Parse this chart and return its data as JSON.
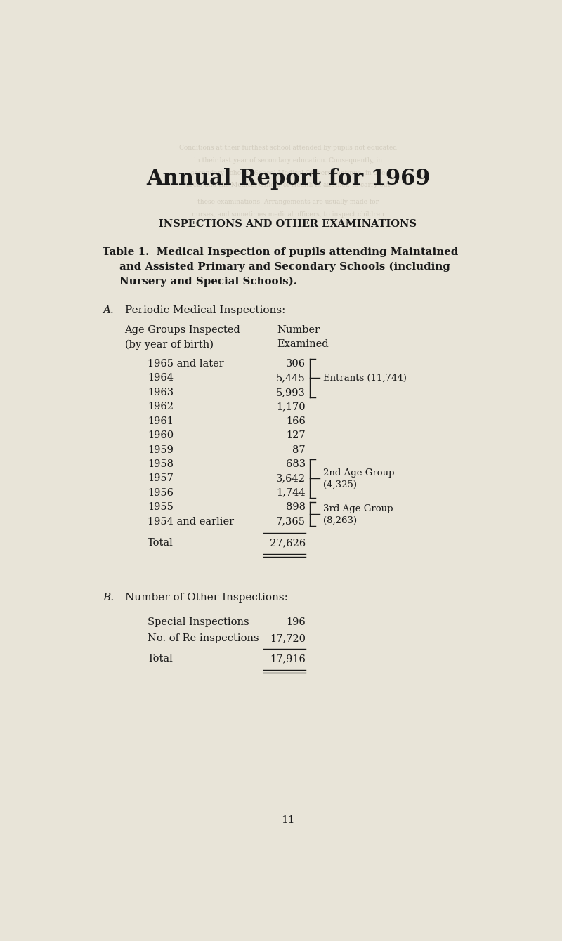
{
  "bg_color": "#e8e4d8",
  "text_color": "#1a1a1a",
  "title": "Annual Report for 1969",
  "section_header": "INSPECTIONS AND OTHER EXAMINATIONS",
  "table_title_line1": "Table 1.  Medical Inspection of pupils attending Maintained",
  "table_title_line2": "and Assisted Primary and Secondary Schools (including",
  "table_title_line3": "Nursery and Special Schools).",
  "section_a_label": "A.",
  "section_a_title": "Periodic Medical Inspections:",
  "col1_header1": "Age Groups Inspected",
  "col1_header2": "(by year of birth)",
  "col2_header1": "Number",
  "col2_header2": "Examined",
  "rows": [
    [
      "1965 and later",
      "306"
    ],
    [
      "1964",
      "5,445"
    ],
    [
      "1963",
      "5,993"
    ],
    [
      "1962",
      "1,170"
    ],
    [
      "1961",
      "166"
    ],
    [
      "1960",
      "127"
    ],
    [
      "1959",
      "87"
    ],
    [
      "1958",
      "683"
    ],
    [
      "1957",
      "3,642"
    ],
    [
      "1956",
      "1,744"
    ],
    [
      "1955",
      "898"
    ],
    [
      "1954 and earlier",
      "7,365"
    ]
  ],
  "total_label": "Total",
  "total_value": "27,626",
  "bracket_entrants_label1": "Entrants (11,744)",
  "bracket_2nd_label1": "2nd Age Group",
  "bracket_2nd_label2": "(4,325)",
  "bracket_3rd_label1": "3rd Age Group",
  "bracket_3rd_label2": "(8,263)",
  "section_b_label": "B.",
  "section_b_title": "Number of Other Inspections:",
  "b_rows": [
    [
      "Special Inspections",
      "196"
    ],
    [
      "No. of Re-inspections",
      "17,720"
    ]
  ],
  "b_total_label": "Total",
  "b_total_value": "17,916",
  "page_number": "11"
}
